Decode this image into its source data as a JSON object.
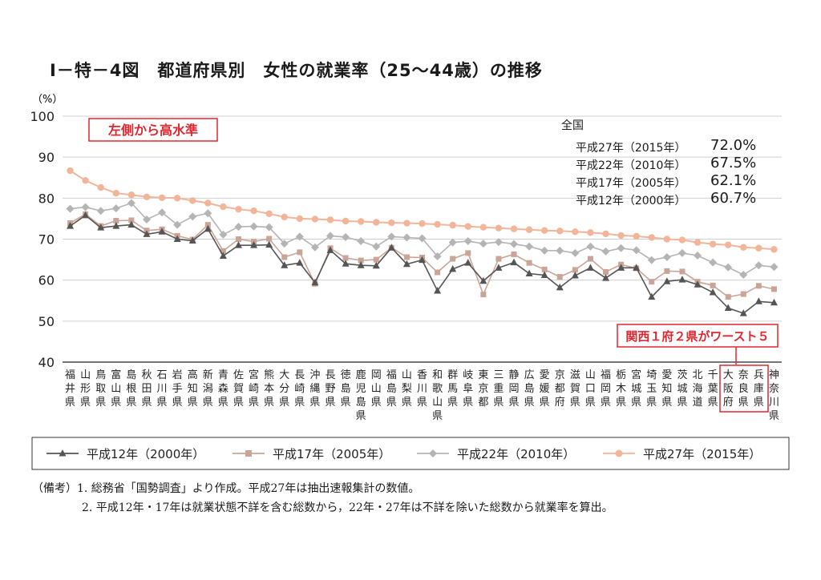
{
  "title": "Ⅰ－特－4図　都道府県別　女性の就業率（25～44歳）の推移",
  "y_unit": "（%）",
  "callout_left": "左側から高水準",
  "callout_right": "関西１府２県がワースト５",
  "national": {
    "header": "全国",
    "rows": [
      {
        "label": "平成27年（2015年）",
        "value": "72.0%"
      },
      {
        "label": "平成22年（2010年）",
        "value": "67.5%"
      },
      {
        "label": "平成17年（2005年）",
        "value": "62.1%"
      },
      {
        "label": "平成12年（2000年）",
        "value": "60.7%"
      }
    ]
  },
  "notes": [
    "（備考）1. 総務省「国勢調査」より作成。平成27年は抽出速報集計の数値。",
    "2. 平成12年・17年は就業状態不詳を含む総数から，22年・27年は不詳を除いた総数から就業率を算出。"
  ],
  "colors": {
    "s2000": "#555555",
    "s2005": "#c9a597",
    "s2010": "#b4b4b4",
    "s2015": "#f2b59a",
    "callout": "#e0262f"
  },
  "chart_data": {
    "type": "line",
    "ylim": [
      40,
      100
    ],
    "yticks": [
      40,
      50,
      60,
      70,
      80,
      90,
      100
    ],
    "ylabel": "（%）",
    "categories": [
      "福井県",
      "山形県",
      "鳥取県",
      "富山県",
      "島根県",
      "秋田県",
      "石川県",
      "岩手県",
      "高知県",
      "新潟県",
      "青森県",
      "佐賀県",
      "宮崎県",
      "熊本県",
      "大分県",
      "長崎県",
      "沖縄県",
      "長野県",
      "徳島県",
      "鹿児島県",
      "岡山県",
      "福島県",
      "山梨県",
      "香川県",
      "和歌山県",
      "群馬県",
      "岐阜県",
      "東京都",
      "三重県",
      "静岡県",
      "広島県",
      "愛媛県",
      "京都府",
      "滋賀県",
      "山口県",
      "福岡県",
      "栃木県",
      "宮城県",
      "埼玉県",
      "愛知県",
      "茨城県",
      "北海道",
      "千葉県",
      "大阪府",
      "奈良県",
      "兵庫県",
      "神奈川県"
    ],
    "series": [
      {
        "name": "平成12年（2000年）",
        "marker": "triangle",
        "values": [
          73.2,
          75.8,
          72.8,
          73.2,
          73.5,
          71.2,
          71.8,
          70.0,
          69.6,
          72.5,
          65.9,
          68.5,
          68.5,
          68.6,
          63.6,
          64.2,
          59.4,
          67.3,
          64.0,
          63.6,
          63.5,
          67.9,
          63.9,
          64.9,
          57.4,
          62.7,
          64.2,
          59.8,
          63.0,
          64.3,
          61.6,
          61.2,
          58.2,
          61.1,
          63.0,
          60.5,
          63.0,
          63.0,
          55.9,
          59.7,
          60.1,
          58.9,
          57.0,
          53.2,
          51.9,
          54.8,
          54.5
        ]
      },
      {
        "name": "平成17年（2005年）",
        "marker": "square",
        "values": [
          73.9,
          76.1,
          73.2,
          74.5,
          74.6,
          72.1,
          72.4,
          70.8,
          69.9,
          73.5,
          67.1,
          70.0,
          69.4,
          70.1,
          65.6,
          66.8,
          59.1,
          67.8,
          65.4,
          64.8,
          65.0,
          67.9,
          65.6,
          65.5,
          61.9,
          65.2,
          66.6,
          56.5,
          65.2,
          66.3,
          64.2,
          62.6,
          60.8,
          62.5,
          65.2,
          62.0,
          63.8,
          62.9,
          59.6,
          62.2,
          62.1,
          59.6,
          58.7,
          55.9,
          56.6,
          58.6,
          57.8
        ]
      },
      {
        "name": "平成22年（2010年）",
        "marker": "diamond",
        "values": [
          77.4,
          77.8,
          76.9,
          77.5,
          78.8,
          74.8,
          76.5,
          73.5,
          75.5,
          76.3,
          71.1,
          73.0,
          73.1,
          72.9,
          68.9,
          70.6,
          68.0,
          70.8,
          70.5,
          69.5,
          68.2,
          70.6,
          70.4,
          70.2,
          65.8,
          69.2,
          69.5,
          68.9,
          69.3,
          68.8,
          68.2,
          67.2,
          67.2,
          66.6,
          68.2,
          67.0,
          67.8,
          67.3,
          64.9,
          65.6,
          66.6,
          66.0,
          64.3,
          63.1,
          61.3,
          63.6,
          63.2
        ]
      },
      {
        "name": "平成27年（2015年）",
        "marker": "circle",
        "values": [
          86.7,
          84.3,
          82.6,
          81.2,
          80.8,
          80.3,
          80.1,
          80.0,
          79.4,
          78.8,
          77.9,
          77.3,
          76.9,
          76.2,
          75.4,
          75.0,
          74.9,
          74.7,
          74.4,
          74.3,
          74.1,
          74.0,
          73.9,
          73.8,
          73.6,
          73.4,
          73.1,
          72.9,
          72.7,
          72.5,
          72.3,
          72.1,
          72.0,
          71.8,
          71.6,
          71.3,
          70.9,
          70.7,
          70.4,
          70.0,
          69.8,
          69.2,
          68.8,
          68.6,
          68.0,
          67.8,
          67.5
        ]
      }
    ]
  }
}
